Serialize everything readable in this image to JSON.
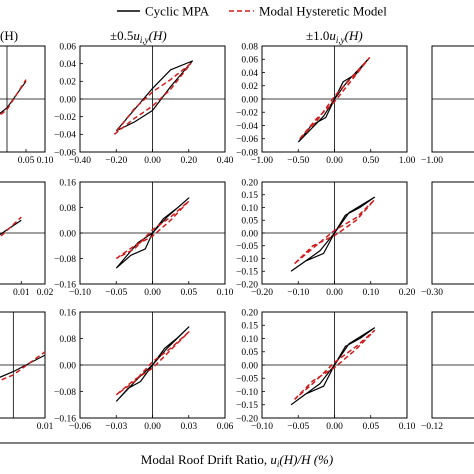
{
  "legend": {
    "items": [
      {
        "label": "Cyclic MPA",
        "style": "solid",
        "color": "#000000"
      },
      {
        "label": "Modal Hysteretic Model",
        "style": "dashed",
        "color": "#d01c1c"
      }
    ],
    "placement": "top"
  },
  "column_headers": {
    "col0": {
      "text": "(H)"
    },
    "col1": {
      "pm": "±0.5",
      "u": "u",
      "sub": "i,y",
      "tail": "(H)"
    },
    "col2": {
      "pm": "±1.0",
      "u": "u",
      "sub": "i,y",
      "tail": "(H)"
    }
  },
  "xlabel": {
    "main": "Modal Roof Drift Ratio, ",
    "u": "u",
    "sub": "i",
    "tail": "(H)/H (%)"
  },
  "colors": {
    "cyclic": "#000000",
    "model": "#d01c1c"
  },
  "chart_data": [
    {
      "id": "r0c0",
      "type": "line",
      "xticks": [
        "0.05",
        "0.10"
      ],
      "series": [
        {
          "name": "Cyclic MPA",
          "x": [
            -0.15,
            0.0,
            0.05
          ],
          "y": [
            -0.06,
            -0.01,
            0.02
          ]
        },
        {
          "name": "Modal Hysteretic Model",
          "x": [
            -0.15,
            0.0,
            0.05
          ],
          "y": [
            -0.062,
            -0.012,
            0.022
          ]
        }
      ]
    },
    {
      "id": "r0c1",
      "type": "line",
      "xlim": [
        -0.4,
        0.4
      ],
      "ylim": [
        -0.06,
        0.06
      ],
      "xticks": [
        "−0.40",
        "−0.20",
        "0.00",
        "0.20",
        "0.40"
      ],
      "yticks": [
        "−0.06",
        "−0.04",
        "−0.02",
        "0.00",
        "0.02",
        "0.04",
        "0.06"
      ],
      "series": [
        {
          "name": "Cyclic MPA",
          "x": [
            -0.2,
            -0.1,
            0.0,
            0.1,
            0.22,
            0.1,
            0.0,
            -0.1,
            -0.2
          ],
          "y": [
            -0.036,
            -0.026,
            -0.013,
            0.014,
            0.043,
            0.033,
            0.012,
            -0.012,
            -0.036
          ]
        },
        {
          "name": "Modal Hysteretic Model",
          "x": [
            -0.21,
            -0.1,
            0.0,
            0.1,
            0.21,
            0.1,
            0.0,
            -0.1,
            -0.21
          ],
          "y": [
            -0.04,
            -0.022,
            -0.008,
            0.011,
            0.04,
            0.022,
            0.008,
            -0.011,
            -0.04
          ]
        }
      ]
    },
    {
      "id": "r0c2",
      "type": "line",
      "xlim": [
        -1.0,
        1.0
      ],
      "ylim": [
        -0.08,
        0.08
      ],
      "xticks": [
        "−1.00",
        "−0.50",
        "0.00",
        "0.50",
        "1.00"
      ],
      "yticks": [
        "−0.08",
        "−0.06",
        "−0.04",
        "−0.02",
        "0.00",
        "0.02",
        "0.04",
        "0.06",
        "0.08"
      ],
      "series": [
        {
          "name": "Cyclic MPA",
          "x": [
            -0.5,
            -0.32,
            -0.12,
            0.0,
            0.18,
            0.48,
            0.3,
            0.12,
            0.0,
            -0.15,
            -0.5
          ],
          "y": [
            -0.065,
            -0.04,
            -0.028,
            0.0,
            0.027,
            0.062,
            0.038,
            0.026,
            0.0,
            -0.026,
            -0.065
          ]
        },
        {
          "name": "Modal Hysteretic Model",
          "x": [
            -0.48,
            -0.25,
            0.0,
            0.25,
            0.48,
            0.25,
            0.0,
            -0.25,
            -0.48
          ],
          "y": [
            -0.06,
            -0.03,
            -0.004,
            0.03,
            0.062,
            0.034,
            0.004,
            -0.034,
            -0.06
          ]
        }
      ]
    },
    {
      "id": "r0c3",
      "type": "line",
      "xticks": [
        "−1.00"
      ],
      "series": []
    },
    {
      "id": "r1c0",
      "type": "line",
      "xticks": [
        "0.01",
        "0.02"
      ],
      "series": [
        {
          "name": "Cyclic MPA",
          "x": [
            -0.02,
            0.0,
            0.01
          ],
          "y": [
            -0.12,
            -0.01,
            0.04
          ]
        },
        {
          "name": "Modal Hysteretic Model",
          "x": [
            -0.02,
            0.0,
            0.01
          ],
          "y": [
            -0.13,
            -0.02,
            0.05
          ]
        }
      ]
    },
    {
      "id": "r1c1",
      "type": "line",
      "xlim": [
        -0.1,
        0.1
      ],
      "ylim": [
        -0.16,
        0.16
      ],
      "xticks": [
        "−0.10",
        "−0.05",
        "0.00",
        "0.05",
        "0.10"
      ],
      "yticks": [
        "−0.16",
        "−0.08",
        "0.00",
        "0.08",
        "0.16"
      ],
      "series": [
        {
          "name": "Cyclic MPA",
          "x": [
            -0.05,
            -0.03,
            -0.01,
            0.0,
            0.02,
            0.05,
            0.035,
            0.015,
            0.0,
            -0.02,
            -0.05
          ],
          "y": [
            -0.11,
            -0.07,
            -0.05,
            0.0,
            0.05,
            0.11,
            0.08,
            0.045,
            0.0,
            -0.03,
            -0.11
          ]
        },
        {
          "name": "Modal Hysteretic Model",
          "x": [
            -0.05,
            -0.025,
            0.0,
            0.025,
            0.05,
            0.025,
            0.0,
            -0.025,
            -0.05
          ],
          "y": [
            -0.08,
            -0.04,
            -0.01,
            0.04,
            0.1,
            0.05,
            0.01,
            -0.05,
            -0.08
          ]
        }
      ]
    },
    {
      "id": "r1c2",
      "type": "line",
      "xlim": [
        -0.2,
        0.2
      ],
      "ylim": [
        -0.2,
        0.2
      ],
      "xticks": [
        "−0.20",
        "−0.10",
        "0.00",
        "0.10",
        "0.20"
      ],
      "yticks": [
        "−0.20",
        "−0.15",
        "−0.10",
        "−0.05",
        "0.00",
        "0.05",
        "0.10",
        "0.15",
        "0.20"
      ],
      "series": [
        {
          "name": "Cyclic MPA",
          "x": [
            -0.12,
            -0.08,
            -0.03,
            0.0,
            0.04,
            0.11,
            0.07,
            0.03,
            0.0,
            -0.04,
            -0.12
          ],
          "y": [
            -0.15,
            -0.11,
            -0.08,
            0.0,
            0.08,
            0.14,
            0.1,
            0.07,
            0.0,
            -0.07,
            -0.15
          ]
        },
        {
          "name": "Modal Hysteretic Model",
          "x": [
            -0.11,
            -0.06,
            0.0,
            0.06,
            0.11,
            0.06,
            0.0,
            -0.06,
            -0.11
          ],
          "y": [
            -0.12,
            -0.05,
            -0.01,
            0.05,
            0.13,
            0.06,
            0.01,
            -0.06,
            -0.12
          ]
        }
      ]
    },
    {
      "id": "r1c3",
      "type": "line",
      "xticks": [
        "−0.30"
      ],
      "series": []
    },
    {
      "id": "r2c0",
      "type": "line",
      "xticks": [
        "0.01"
      ],
      "series": [
        {
          "name": "Cyclic MPA",
          "x": [
            -0.02,
            0.0,
            0.01
          ],
          "y": [
            -0.1,
            -0.02,
            0.03
          ]
        },
        {
          "name": "Modal Hysteretic Model",
          "x": [
            -0.02,
            0.0,
            0.01
          ],
          "y": [
            -0.11,
            -0.03,
            0.04
          ]
        }
      ]
    },
    {
      "id": "r2c1",
      "type": "line",
      "xlim": [
        -0.06,
        0.06
      ],
      "ylim": [
        -0.16,
        0.16
      ],
      "xticks": [
        "−0.06",
        "−0.03",
        "0.00",
        "0.03",
        "0.06"
      ],
      "yticks": [
        "−0.16",
        "−0.08",
        "0.00",
        "0.08",
        "0.16"
      ],
      "series": [
        {
          "name": "Cyclic MPA",
          "x": [
            -0.03,
            -0.02,
            -0.01,
            0.0,
            0.012,
            0.03,
            0.02,
            0.01,
            0.0,
            -0.012,
            -0.03
          ],
          "y": [
            -0.11,
            -0.07,
            -0.05,
            0.0,
            0.05,
            0.115,
            0.08,
            0.05,
            0.0,
            -0.04,
            -0.11
          ]
        },
        {
          "name": "Modal Hysteretic Model",
          "x": [
            -0.03,
            -0.015,
            0.0,
            0.015,
            0.03,
            0.015,
            0.0,
            -0.015,
            -0.03
          ],
          "y": [
            -0.09,
            -0.045,
            -0.01,
            0.045,
            0.1,
            0.05,
            0.01,
            -0.05,
            -0.09
          ]
        }
      ]
    },
    {
      "id": "r2c2",
      "type": "line",
      "xlim": [
        -0.1,
        0.1
      ],
      "ylim": [
        -0.2,
        0.2
      ],
      "xticks": [
        "−0.10",
        "−0.05",
        "0.00",
        "0.05",
        "0.10"
      ],
      "yticks": [
        "−0.20",
        "−0.15",
        "−0.10",
        "−0.05",
        "0.00",
        "0.05",
        "0.10",
        "0.15",
        "0.20"
      ],
      "series": [
        {
          "name": "Cyclic MPA",
          "x": [
            -0.06,
            -0.04,
            -0.015,
            0.0,
            0.02,
            0.055,
            0.035,
            0.015,
            0.0,
            -0.02,
            -0.06
          ],
          "y": [
            -0.15,
            -0.11,
            -0.08,
            0.0,
            0.08,
            0.14,
            0.1,
            0.07,
            0.0,
            -0.07,
            -0.15
          ]
        },
        {
          "name": "Modal Hysteretic Model",
          "x": [
            -0.055,
            -0.03,
            0.0,
            0.03,
            0.055,
            0.03,
            0.0,
            -0.03,
            -0.055
          ],
          "y": [
            -0.13,
            -0.06,
            -0.01,
            0.06,
            0.13,
            0.07,
            0.01,
            -0.07,
            -0.13
          ]
        }
      ]
    },
    {
      "id": "r2c3",
      "type": "line",
      "xticks": [
        "−0.12"
      ],
      "series": []
    }
  ]
}
